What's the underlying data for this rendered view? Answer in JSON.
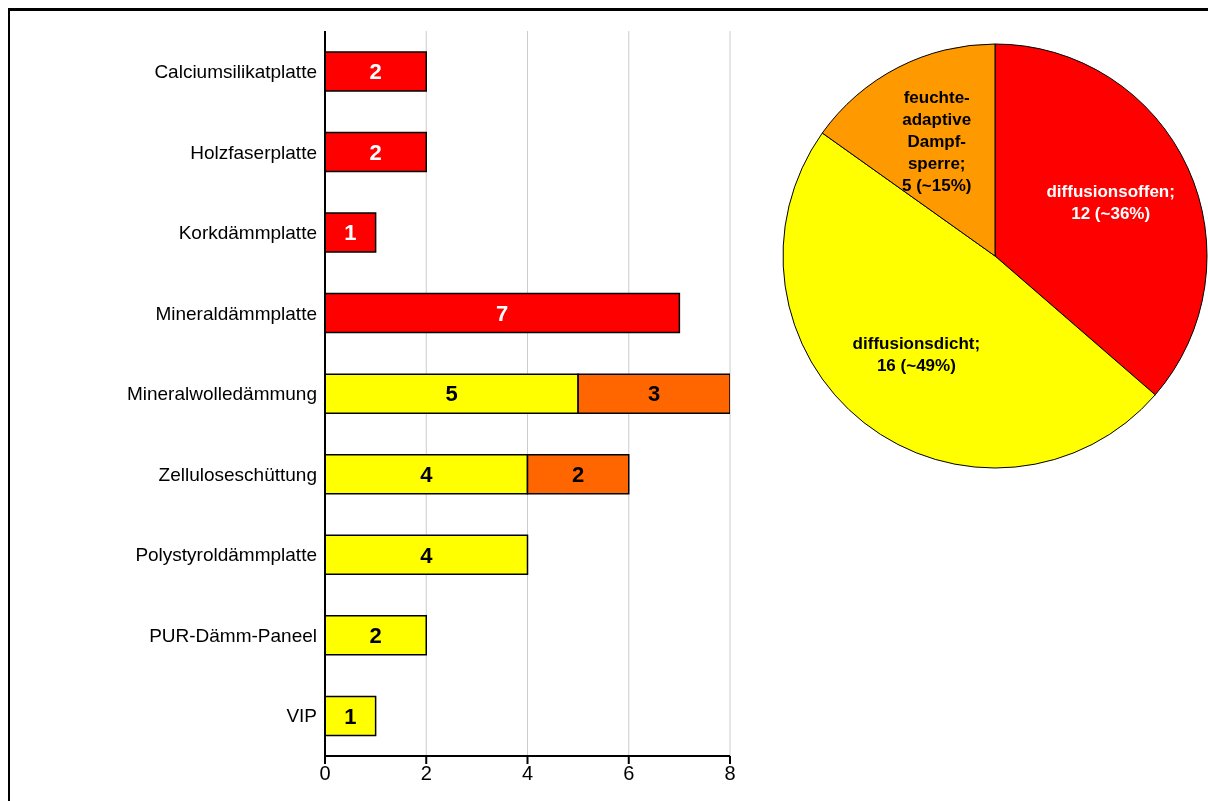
{
  "chart_data": [
    {
      "type": "bar",
      "orientation": "horizontal",
      "stacked": true,
      "data_labels": true,
      "grid": "x",
      "categories": [
        "Calciumsilikatplatte",
        "Holzfaserplatte",
        "Korkdämmplatte",
        "Mineraldämmplatte",
        "Mineralwolledämmung",
        "Zelluloseschüttung",
        "Polystyroldämmplatte",
        "PUR-Dämm-Paneel",
        "VIP"
      ],
      "series": [
        {
          "color": "#ff0000",
          "values": [
            2,
            2,
            1,
            7,
            null,
            null,
            null,
            null,
            null
          ]
        },
        {
          "color": "#ffff00",
          "values": [
            null,
            null,
            null,
            null,
            5,
            4,
            4,
            2,
            1
          ]
        },
        {
          "color": "#ff6600",
          "values": [
            null,
            null,
            null,
            null,
            3,
            2,
            null,
            null,
            null
          ]
        }
      ],
      "xlim": [
        0,
        8
      ],
      "xticks": [
        0,
        2,
        4,
        6,
        8
      ]
    },
    {
      "type": "pie",
      "categories": [
        "diffusionsoffen",
        "diffusionsdicht",
        "feuchte-adaptive Dampf-sperre"
      ],
      "values": [
        12,
        16,
        5
      ],
      "value_labels": [
        "; 12 (~36%)",
        "; 16 (~49%)",
        "; 5 (~15%)"
      ],
      "colors": [
        "#ff0000",
        "#ffff00",
        "#ff9900"
      ]
    }
  ]
}
